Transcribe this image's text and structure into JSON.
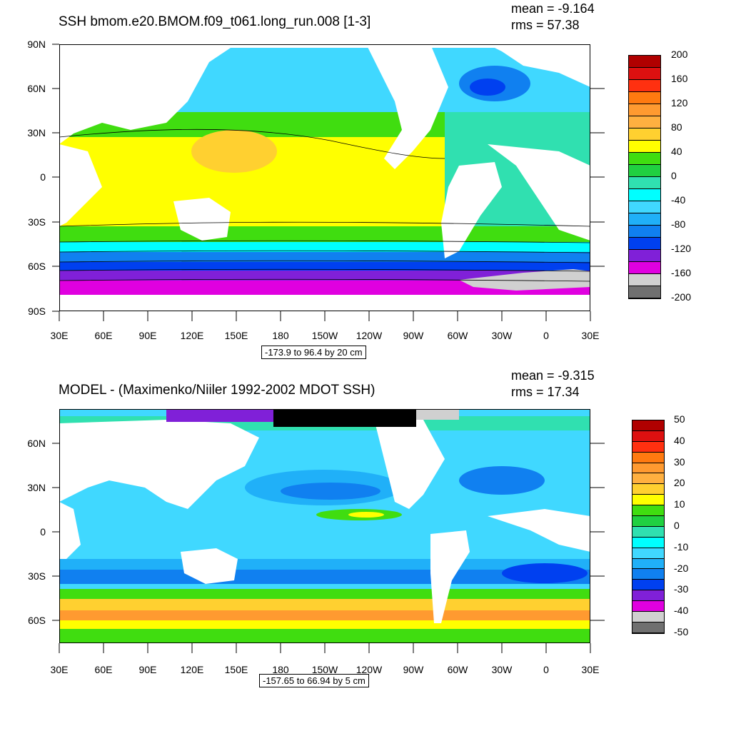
{
  "panels": [
    {
      "title": "SSH bmom.e20.BMOM.f09_t061.long_run.008 [1-3]",
      "mean_text": "mean = -9.164",
      "rms_text": "rms = 57.38",
      "range_text": "-173.9 to 96.4 by 20 cm",
      "lat_labels": [
        "90N",
        "60N",
        "30N",
        "0",
        "30S",
        "60S",
        "90S"
      ],
      "lon_labels": [
        "30E",
        "60E",
        "90E",
        "120E",
        "150E",
        "180",
        "150W",
        "120W",
        "90W",
        "60W",
        "30W",
        "0",
        "30E"
      ],
      "colorbar_labels": [
        "200",
        "160",
        "120",
        "80",
        "40",
        "0",
        "-40",
        "-80",
        "-120",
        "-160",
        "-200"
      ],
      "colorbar_colors": [
        "#b00000",
        "#dd1010",
        "#ff3010",
        "#ff7a10",
        "#ff9a30",
        "#ffb040",
        "#ffd030",
        "#ffff00",
        "#40dd10",
        "#20d040",
        "#30e0b0",
        "#00ffff",
        "#40d8ff",
        "#20b0f8",
        "#1080f0",
        "#0040f0",
        "#8020d8",
        "#e000e0",
        "#d0d0d0",
        "#707070"
      ]
    },
    {
      "title": "MODEL - (Maximenko/Niiler 1992-2002 MDOT SSH)",
      "mean_text": "mean = -9.315",
      "rms_text": "rms = 17.34",
      "range_text": "-157.65 to 66.94 by 5 cm",
      "lat_labels": [
        "60N",
        "30N",
        "0",
        "30S",
        "60S"
      ],
      "lon_labels": [
        "30E",
        "60E",
        "90E",
        "120E",
        "150E",
        "180",
        "150W",
        "120W",
        "90W",
        "60W",
        "30W",
        "0",
        "30E"
      ],
      "colorbar_labels": [
        "50",
        "40",
        "30",
        "20",
        "10",
        "0",
        "-10",
        "-20",
        "-30",
        "-40",
        "-50"
      ],
      "colorbar_colors": [
        "#b00000",
        "#dd1010",
        "#ff3010",
        "#ff7a10",
        "#ff9a30",
        "#ffb040",
        "#ffd030",
        "#ffff00",
        "#40dd10",
        "#20d040",
        "#30e0b0",
        "#00ffff",
        "#40d8ff",
        "#20b0f8",
        "#1080f0",
        "#0040f0",
        "#8020d8",
        "#e000e0",
        "#d0d0d0",
        "#707070"
      ]
    }
  ]
}
